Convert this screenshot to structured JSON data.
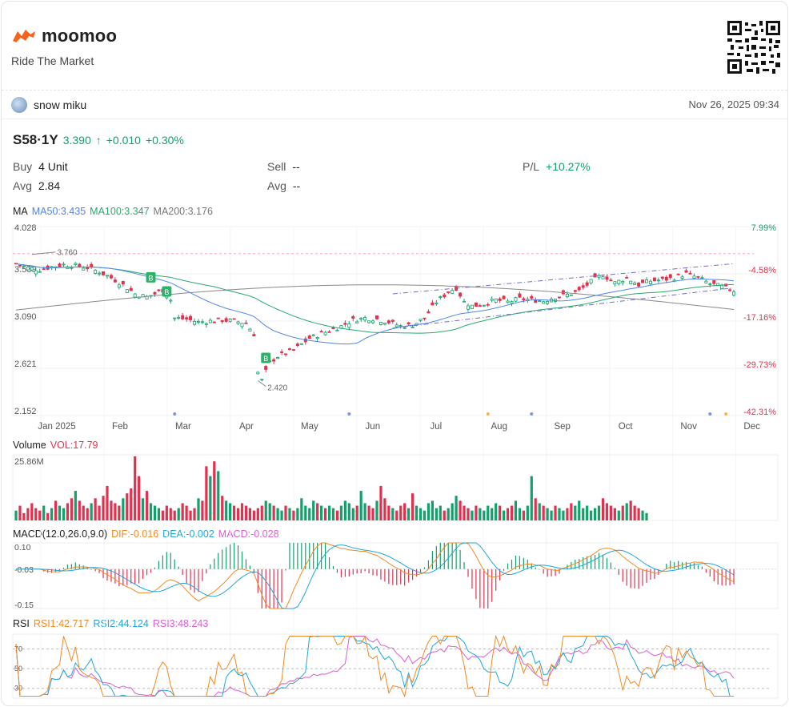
{
  "brand": {
    "name": "moomoo",
    "tagline": "Ride The Market"
  },
  "user": {
    "name": "snow miku",
    "datetime": "Nov 26, 2025 09:34"
  },
  "quote": {
    "symbol": "S58·1Y",
    "price": "3.390",
    "arrow": "↑",
    "change": "+0.010",
    "change_pct": "+0.30%"
  },
  "position": {
    "buy_label": "Buy",
    "buy_value": "4 Unit",
    "avg_label": "Avg",
    "avg_value": "2.84",
    "sell_label": "Sell",
    "sell_value": "--",
    "avg2_label": "Avg",
    "avg2_value": "--",
    "pl_label": "P/L",
    "pl_value": "+10.27%"
  },
  "ma_legend": {
    "label": "MA",
    "ma50": "MA50:3.435",
    "ma100": "MA100:3.347",
    "ma200": "MA200:3.176"
  },
  "volume_legend": {
    "label": "Volume",
    "vol": "VOL:17.79"
  },
  "macd_legend": {
    "label": "MACD(12.0,26.0,9.0)",
    "dif": "DIF:-0.016",
    "dea": "DEA:-0.002",
    "macd": "MACD:-0.028"
  },
  "rsi_legend": {
    "label": "RSI",
    "rsi1": "RSI1:42.717",
    "rsi2": "RSI2:44.124",
    "rsi3": "RSI3:48.243"
  },
  "colors": {
    "up": "#12a06b",
    "down": "#e0324f",
    "ma50": "#4f86e6",
    "ma100": "#2aa86e",
    "ma200": "#888888",
    "dif": "#f08a24",
    "dea": "#22a6d8",
    "rsi3": "#d95fd1"
  },
  "chart_data": [
    {
      "type": "candlestick",
      "title": "S58·1Y",
      "price_axis": [
        "4.028",
        "3.559",
        "3.090",
        "2.621",
        "2.152"
      ],
      "pct_axis": [
        "7.99%",
        "-4.58%",
        "-17.16%",
        "-29.73%",
        "-42.31%"
      ],
      "ylim": [
        2.152,
        4.028
      ],
      "x_labels": [
        "Jan 2025",
        "Feb",
        "Mar",
        "Apr",
        "May",
        "Jun",
        "Jul",
        "Aug",
        "Sep",
        "Oct",
        "Nov",
        "Dec"
      ],
      "annotations": [
        {
          "text": "3.760",
          "value": 3.76
        },
        {
          "text": "2.420",
          "value": 2.42
        }
      ],
      "signals": [
        {
          "text": "B",
          "month": "Feb"
        },
        {
          "text": "B",
          "month": "Feb"
        },
        {
          "text": "B",
          "month": "Apr"
        }
      ],
      "close_path": [
        [
          0,
          3.66
        ],
        [
          3,
          3.62
        ],
        [
          6,
          3.6
        ],
        [
          9,
          3.63
        ],
        [
          12,
          3.65
        ],
        [
          15,
          3.64
        ],
        [
          18,
          3.62
        ],
        [
          21,
          3.58
        ],
        [
          24,
          3.52
        ],
        [
          27,
          3.45
        ],
        [
          30,
          3.36
        ],
        [
          33,
          3.33
        ],
        [
          35,
          3.36
        ],
        [
          37,
          3.4
        ],
        [
          39,
          3.3
        ],
        [
          40,
          3.12
        ],
        [
          43,
          3.11
        ],
        [
          46,
          3.08
        ],
        [
          49,
          3.09
        ],
        [
          52,
          3.1
        ],
        [
          55,
          3.09
        ],
        [
          58,
          3.07
        ],
        [
          60,
          2.96
        ],
        [
          61,
          2.58
        ],
        [
          62,
          2.5
        ],
        [
          64,
          2.68
        ],
        [
          66,
          2.74
        ],
        [
          70,
          2.8
        ],
        [
          74,
          2.92
        ],
        [
          78,
          2.98
        ],
        [
          82,
          3.04
        ],
        [
          85,
          3.1
        ],
        [
          88,
          3.12
        ],
        [
          91,
          3.11
        ],
        [
          94,
          3.08
        ],
        [
          97,
          3.04
        ],
        [
          100,
          3.05
        ],
        [
          103,
          3.12
        ],
        [
          106,
          3.28
        ],
        [
          109,
          3.38
        ],
        [
          111,
          3.42
        ],
        [
          113,
          3.28
        ],
        [
          115,
          3.24
        ],
        [
          118,
          3.26
        ],
        [
          121,
          3.3
        ],
        [
          124,
          3.28
        ],
        [
          127,
          3.31
        ],
        [
          130,
          3.3
        ],
        [
          133,
          3.29
        ],
        [
          136,
          3.33
        ],
        [
          139,
          3.35
        ],
        [
          142,
          3.39
        ],
        [
          145,
          3.48
        ],
        [
          148,
          3.55
        ],
        [
          151,
          3.47
        ],
        [
          154,
          3.52
        ],
        [
          157,
          3.45
        ],
        [
          160,
          3.49
        ],
        [
          163,
          3.5
        ],
        [
          166,
          3.52
        ],
        [
          169,
          3.56
        ],
        [
          172,
          3.52
        ],
        [
          175,
          3.46
        ],
        [
          178,
          3.43
        ],
        [
          181,
          3.39
        ]
      ],
      "ma50": "MA50:3.435",
      "ma100": "MA100:3.347",
      "ma200": "MA200:3.176"
    },
    {
      "type": "bar",
      "title": "Volume",
      "ylabel": "25.86M",
      "values": [
        4,
        6,
        3,
        5,
        7,
        5,
        4,
        6,
        3,
        5,
        8,
        6,
        5,
        7,
        9,
        12,
        8,
        6,
        5,
        7,
        9,
        6,
        10,
        14,
        8,
        7,
        6,
        9,
        11,
        13,
        26,
        18,
        9,
        12,
        7,
        6,
        5,
        4,
        6,
        5,
        4,
        5,
        7,
        6,
        4,
        5,
        9,
        8,
        22,
        18,
        24,
        20,
        10,
        8,
        7,
        6,
        5,
        7,
        6,
        5,
        4,
        5,
        6,
        8,
        7,
        6,
        5,
        4,
        6,
        5,
        4,
        5,
        9,
        6,
        5,
        8,
        7,
        6,
        5,
        6,
        5,
        4,
        6,
        8,
        7,
        5,
        6,
        12,
        7,
        6,
        5,
        8,
        14,
        9,
        6,
        5,
        4,
        6,
        7,
        5,
        11,
        6,
        5,
        4,
        7,
        8,
        5,
        6,
        4,
        5,
        7,
        10,
        8,
        6,
        5,
        4,
        6,
        5,
        4,
        6,
        5,
        7,
        6,
        4,
        5,
        6,
        8,
        5,
        4,
        6,
        18,
        9,
        7,
        6,
        5,
        4,
        6,
        5,
        4,
        5,
        7,
        6,
        8,
        5,
        6,
        4,
        5,
        6,
        9,
        7,
        6,
        5,
        4,
        6,
        7,
        8,
        6,
        5,
        4,
        3
      ]
    },
    {
      "type": "line",
      "title": "MACD(12.0,26.0,9.0)",
      "y_ticks": [
        "0.10",
        "-0.03",
        "-0.15"
      ],
      "ylim": [
        -0.15,
        0.1
      ]
    },
    {
      "type": "line",
      "title": "RSI",
      "y_ticks": [
        "70",
        "50",
        "30"
      ],
      "ylim": [
        20,
        85
      ]
    }
  ]
}
